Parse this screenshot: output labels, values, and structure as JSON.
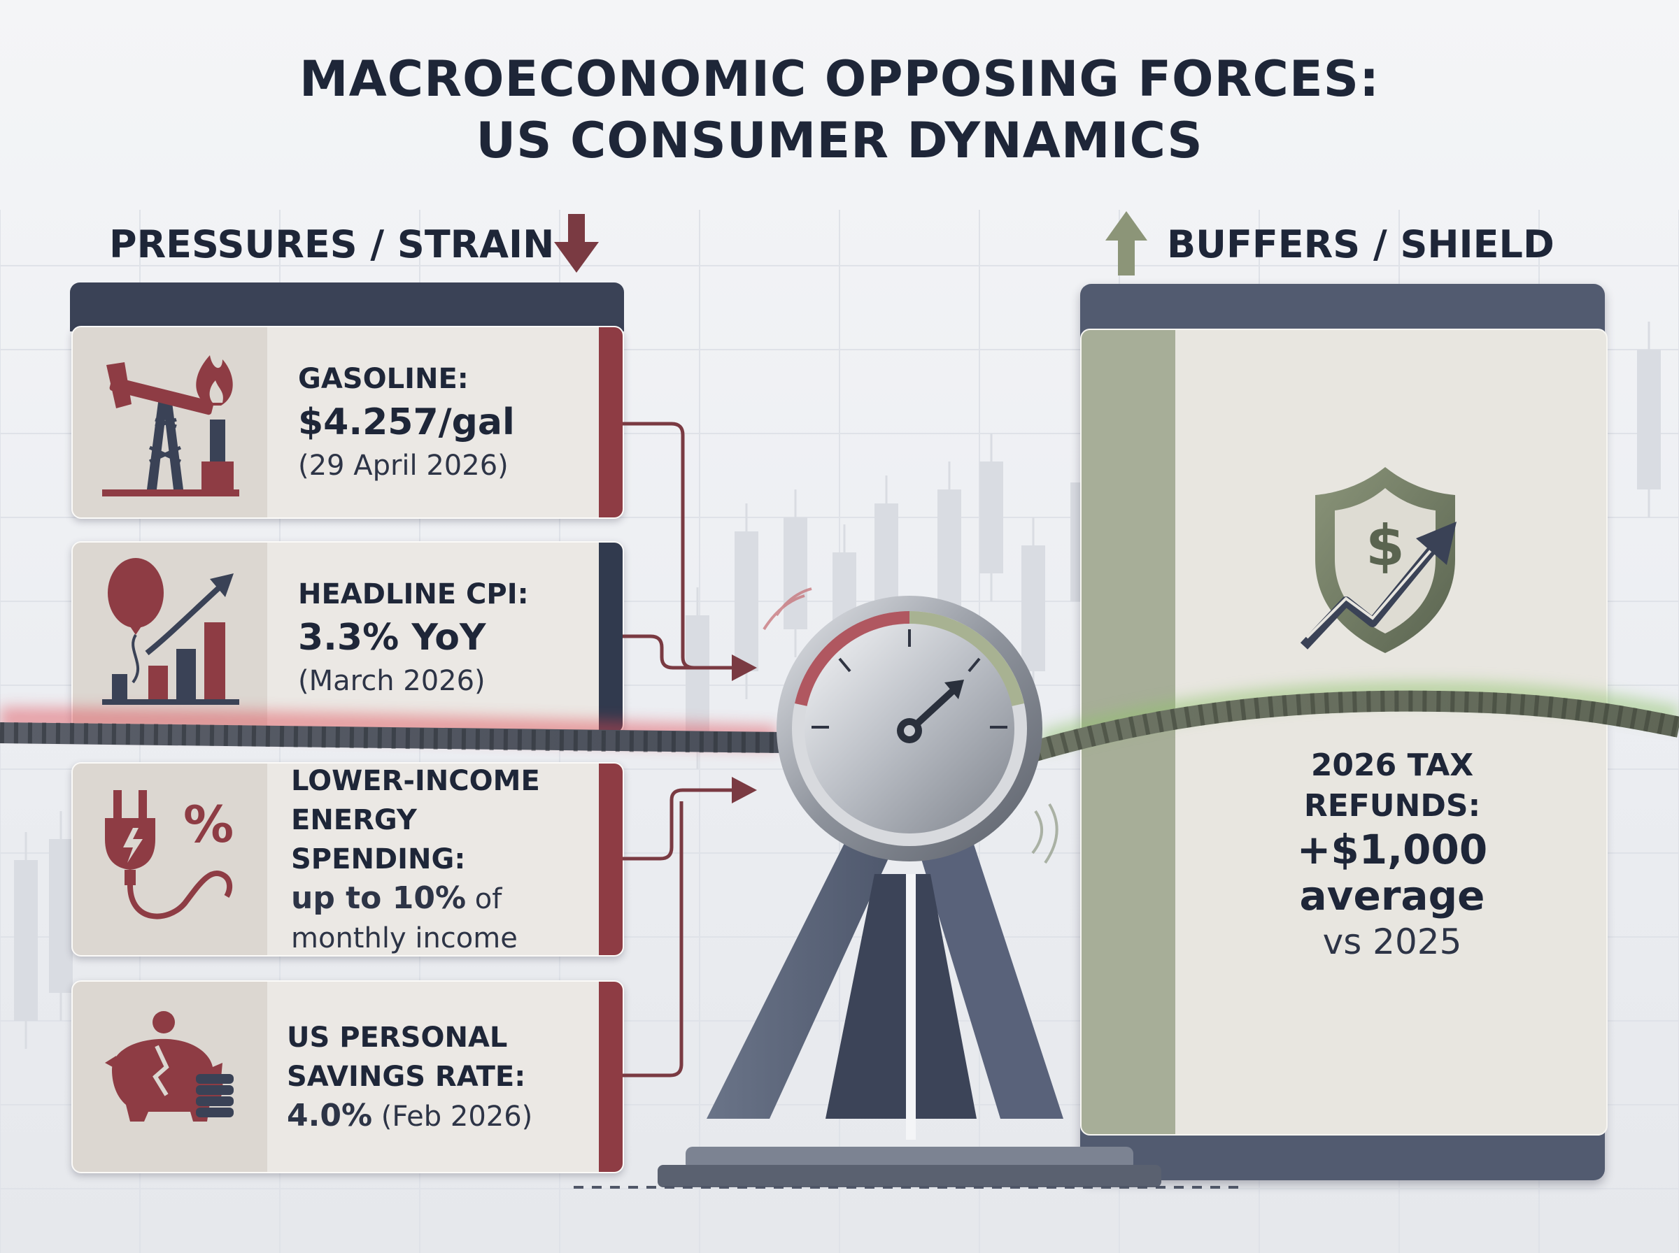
{
  "title": {
    "line1": "MACROECONOMIC OPPOSING FORCES:",
    "line2": "US CONSUMER DYNAMICS"
  },
  "pressures": {
    "heading": "PRESSURES / STRAIN",
    "arrow_icon": "down-arrow-icon",
    "accent_color": "#8e3c44",
    "cards": [
      {
        "icon": "oil-pump-flame-icon",
        "label": "GASOLINE:",
        "value": "$4.257/gal",
        "note": "(29 April 2026)"
      },
      {
        "icon": "balloon-bar-chart-icon",
        "label": "HEADLINE CPI:",
        "value": "3.3% YoY",
        "note": "(March 2026)"
      },
      {
        "icon": "power-plug-percent-icon",
        "label_line1": "LOWER-INCOME",
        "label_line2": "ENERGY SPENDING:",
        "value_bold": "up to 10%",
        "value_rest": " of",
        "note": "monthly income"
      },
      {
        "icon": "broken-piggy-bank-icon",
        "label_line1": "US PERSONAL",
        "label_line2": "SAVINGS RATE:",
        "value_bold": "4.0%",
        "value_rest": " (Feb 2026)"
      }
    ]
  },
  "buffers": {
    "heading": "BUFFERS / SHIELD",
    "arrow_icon": "up-arrow-icon",
    "accent_color": "#8c9578",
    "card": {
      "icon": "shield-dollar-growth-icon",
      "label_line1": "2026 TAX",
      "label_line2": "REFUNDS:",
      "value_line1": "+$1,000",
      "value_line2": "average",
      "note": "vs 2025"
    }
  },
  "center": {
    "icon": "gauge-balance-icon"
  }
}
